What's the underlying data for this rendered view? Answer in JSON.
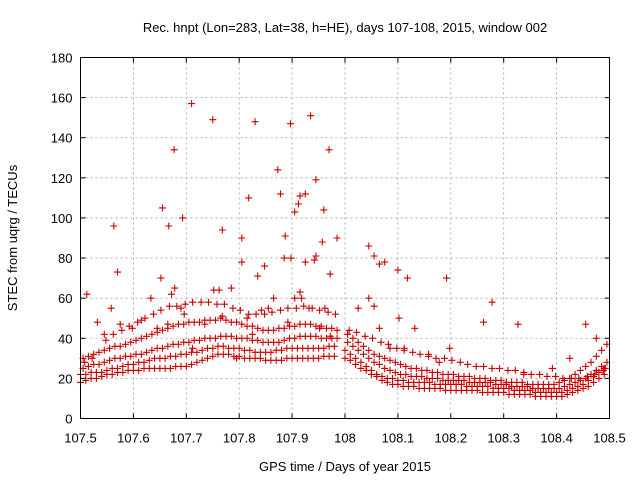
{
  "chart_data": {
    "type": "scatter",
    "title": "Rec. hnpt (Lon=283, Lat=38, h=HE), days 107-108, 2015, window 002",
    "xlabel": "GPS time / Days of year 2015",
    "ylabel": "STEC from uqrg / TECUs",
    "xlim": [
      107.5,
      108.5
    ],
    "ylim": [
      0,
      180
    ],
    "grid": true,
    "marker": "+",
    "marker_color": "#cc0000",
    "xticks": [
      {
        "value": 107.5,
        "label": "107.5"
      },
      {
        "value": 107.6,
        "label": "107.6"
      },
      {
        "value": 107.7,
        "label": "107.7"
      },
      {
        "value": 107.8,
        "label": "107.8"
      },
      {
        "value": 107.9,
        "label": "107.9"
      },
      {
        "value": 108.0,
        "label": "108"
      },
      {
        "value": 108.1,
        "label": "108.1"
      },
      {
        "value": 108.2,
        "label": "108.2"
      },
      {
        "value": 108.3,
        "label": "108.3"
      },
      {
        "value": 108.4,
        "label": "108.4"
      },
      {
        "value": 108.5,
        "label": "108.5"
      }
    ],
    "yticks": [
      {
        "value": 0,
        "label": "0"
      },
      {
        "value": 20,
        "label": "20"
      },
      {
        "value": 40,
        "label": "40"
      },
      {
        "value": 60,
        "label": "60"
      },
      {
        "value": 80,
        "label": "80"
      },
      {
        "value": 100,
        "label": "100"
      },
      {
        "value": 120,
        "label": "120"
      },
      {
        "value": 140,
        "label": "140"
      },
      {
        "value": 160,
        "label": "160"
      },
      {
        "value": 180,
        "label": "180"
      }
    ],
    "x": [
      107.5,
      107.51,
      107.52,
      107.53,
      107.54,
      107.55,
      107.56,
      107.57,
      107.58,
      107.59,
      107.6,
      107.61,
      107.62,
      107.63,
      107.64,
      107.65,
      107.66,
      107.67,
      107.68,
      107.69,
      107.7,
      107.71,
      107.72,
      107.73,
      107.74,
      107.75,
      107.76,
      107.77,
      107.78,
      107.79,
      107.8,
      107.81,
      107.82,
      107.83,
      107.84,
      107.85,
      107.86,
      107.87,
      107.88,
      107.89,
      107.9,
      107.91,
      107.92,
      107.93,
      107.94,
      107.95,
      107.96,
      107.97,
      107.98,
      108.0,
      108.01,
      108.02,
      108.03,
      108.04,
      108.05,
      108.06,
      108.07,
      108.08,
      108.09,
      108.1,
      108.11,
      108.12,
      108.13,
      108.14,
      108.15,
      108.16,
      108.17,
      108.18,
      108.19,
      108.2,
      108.21,
      108.22,
      108.23,
      108.24,
      108.25,
      108.26,
      108.27,
      108.28,
      108.29,
      108.3,
      108.31,
      108.32,
      108.33,
      108.34,
      108.35,
      108.36,
      108.37,
      108.38,
      108.39,
      108.4,
      108.41,
      108.42,
      108.43,
      108.44,
      108.45,
      108.46,
      108.47,
      108.48,
      108.49,
      107.5,
      107.51,
      107.52,
      107.53,
      107.54,
      107.55,
      107.56,
      107.57,
      107.58,
      107.59,
      107.6,
      107.61,
      107.62,
      107.63,
      107.64,
      107.65,
      107.66,
      107.67,
      107.68,
      107.69,
      107.7,
      107.71,
      107.72,
      107.73,
      107.74,
      107.75,
      107.76,
      107.77,
      107.78,
      107.79,
      107.8,
      107.81,
      107.82,
      107.83,
      107.84,
      107.85,
      107.86,
      107.87,
      107.88,
      107.89,
      107.9,
      107.91,
      107.92,
      107.93,
      107.94,
      107.95,
      107.96,
      107.97,
      107.98,
      108.0,
      108.01,
      108.02,
      108.03,
      108.04,
      108.05,
      108.06,
      108.07,
      108.08,
      108.09,
      108.1,
      108.11,
      108.12,
      108.13,
      108.14,
      108.15,
      108.16,
      108.17,
      108.18,
      108.19,
      108.2,
      108.21,
      108.22,
      108.23,
      108.24,
      108.25,
      108.26,
      108.27,
      108.28,
      108.29,
      108.3,
      108.31,
      108.32,
      108.33,
      108.34,
      108.35,
      108.36,
      108.37,
      108.38,
      108.39,
      108.4,
      108.41,
      108.42,
      108.43,
      108.44,
      108.45,
      108.46,
      108.47,
      108.48,
      108.49,
      107.505,
      107.515,
      107.525,
      107.535,
      107.545,
      107.555,
      107.565,
      107.575,
      107.585,
      107.595,
      107.605,
      107.615,
      107.625,
      107.635,
      107.645,
      107.655,
      107.665,
      107.675,
      107.685,
      107.695,
      107.705,
      107.715,
      107.725,
      107.735,
      107.745,
      107.755,
      107.765,
      107.775,
      107.785,
      107.795,
      107.805,
      107.815,
      107.825,
      107.835,
      107.845,
      107.855,
      107.865,
      107.875,
      107.885,
      107.895,
      107.905,
      107.915,
      107.925,
      107.935,
      107.945,
      107.955,
      107.965,
      107.975,
      107.985,
      108.005,
      108.015,
      108.025,
      108.035,
      108.045,
      108.055,
      108.065,
      108.075,
      108.085,
      108.095,
      108.105,
      108.115,
      108.125,
      108.135,
      108.145,
      108.155,
      108.165,
      108.175,
      108.185,
      108.195,
      108.205,
      108.215,
      108.225,
      108.235,
      108.245,
      108.255,
      108.265,
      108.275,
      108.285,
      108.295,
      108.305,
      108.315,
      108.325,
      108.335,
      108.345,
      108.355,
      108.365,
      108.375,
      108.385,
      108.395,
      108.405,
      108.415,
      108.425,
      108.435,
      108.445,
      108.455,
      108.465,
      108.475,
      108.485,
      108.495,
      107.505,
      107.515,
      107.525,
      107.535,
      107.545,
      107.555,
      107.565,
      107.575,
      107.585,
      107.595,
      107.605,
      107.615,
      107.625,
      107.635,
      107.645,
      107.655,
      107.665,
      107.675,
      107.685,
      107.695,
      107.705,
      107.715,
      107.725,
      107.735,
      107.745,
      107.755,
      107.765,
      107.775,
      107.785,
      107.795,
      107.805,
      107.815,
      107.825,
      107.835,
      107.845,
      107.855,
      107.865,
      107.875,
      107.885,
      107.895,
      107.905,
      107.915,
      107.925,
      107.935,
      107.945,
      107.955,
      107.965,
      107.975,
      107.985,
      108.005,
      108.015,
      108.025,
      108.035,
      108.045,
      108.055,
      108.065,
      108.075,
      108.085,
      108.095,
      108.105,
      108.115,
      108.125,
      108.135,
      108.145,
      108.155,
      108.165,
      108.175,
      108.185,
      108.195,
      108.205,
      108.215,
      108.225,
      108.235,
      108.245,
      108.255,
      108.265,
      108.275,
      108.285,
      108.295,
      108.305,
      108.315,
      108.325,
      108.335,
      108.345,
      108.355,
      108.365,
      108.375,
      108.385,
      108.395,
      108.405,
      108.415,
      108.425,
      108.435,
      108.445,
      108.455,
      108.465,
      108.475,
      108.485,
      108.495,
      107.508,
      107.522,
      107.548,
      107.562,
      107.578,
      107.592,
      107.608,
      107.622,
      107.638,
      107.652,
      107.668,
      107.682,
      107.698,
      107.712,
      107.728,
      107.742,
      107.758,
      107.772,
      107.788,
      107.802,
      107.818,
      107.832,
      107.848,
      107.862,
      107.878,
      107.892,
      107.908,
      107.922,
      107.938,
      107.952,
      107.968,
      107.982,
      108.008,
      108.022,
      108.038,
      108.052,
      108.068,
      108.082,
      108.098,
      108.112,
      108.128,
      108.142,
      108.158,
      108.172,
      108.188,
      108.202,
      108.218,
      108.232,
      108.248,
      108.262,
      108.278,
      108.292,
      108.308,
      108.322,
      108.338,
      108.352,
      108.368,
      108.382,
      108.398,
      108.412,
      108.428,
      108.442,
      108.458,
      108.472,
      108.488,
      107.512,
      107.532,
      107.545,
      107.558,
      107.575,
      107.598,
      107.615,
      107.633,
      107.645,
      107.652,
      107.665,
      107.672,
      107.678,
      107.69,
      107.696,
      107.712,
      107.735,
      107.752,
      107.762,
      107.768,
      107.785,
      107.795,
      107.805,
      107.815,
      107.825,
      107.835,
      107.842,
      107.855,
      107.865,
      107.878,
      107.885,
      107.892,
      107.898,
      107.905,
      107.912,
      107.918,
      107.925,
      107.932,
      107.942,
      107.952,
      107.962,
      107.972,
      108.025,
      108.045,
      108.055,
      108.065,
      108.085,
      108.102,
      108.112,
      108.132,
      108.158,
      108.178,
      108.198,
      108.262,
      108.338,
      108.392,
      108.425,
      108.455,
      108.475,
      108.492,
      107.57,
      107.563,
      107.655,
      107.667,
      107.677,
      107.693,
      107.71,
      107.75,
      107.768,
      107.805,
      107.818,
      107.83,
      107.848,
      107.873,
      107.887,
      107.897,
      107.905,
      107.935,
      107.945,
      107.96,
      107.97,
      107.985,
      107.915,
      107.925,
      107.945,
      108.075,
      108.1,
      108.055,
      107.915,
      107.957,
      107.972,
      108.045,
      108.065,
      108.118,
      108.192,
      108.278,
      108.327
    ],
    "y": [
      18,
      19,
      20,
      20,
      21,
      22,
      22,
      23,
      23,
      24,
      24,
      24,
      25,
      25,
      25,
      25,
      25,
      25,
      26,
      26,
      26,
      27,
      28,
      29,
      30,
      31,
      32,
      32,
      32,
      31,
      31,
      30,
      30,
      30,
      30,
      29,
      29,
      29,
      29,
      30,
      30,
      30,
      30,
      30,
      30,
      30,
      31,
      31,
      31,
      30,
      29,
      27,
      25,
      24,
      22,
      21,
      19,
      18,
      17,
      17,
      16,
      16,
      16,
      15,
      15,
      15,
      15,
      15,
      14,
      14,
      14,
      14,
      14,
      14,
      14,
      13,
      13,
      13,
      13,
      13,
      12,
      12,
      12,
      12,
      12,
      11,
      11,
      11,
      11,
      11,
      11,
      12,
      13,
      14,
      15,
      16,
      18,
      20,
      22,
      22,
      22,
      23,
      23,
      23,
      24,
      25,
      25,
      26,
      27,
      27,
      28,
      28,
      29,
      30,
      30,
      30,
      31,
      31,
      32,
      32,
      33,
      33,
      34,
      35,
      35,
      36,
      36,
      35,
      35,
      35,
      34,
      34,
      33,
      33,
      33,
      33,
      34,
      34,
      35,
      35,
      35,
      35,
      35,
      35,
      35,
      35,
      36,
      36,
      34,
      32,
      30,
      28,
      26,
      24,
      22,
      21,
      20,
      20,
      19,
      19,
      18,
      18,
      18,
      18,
      18,
      17,
      17,
      17,
      17,
      17,
      17,
      16,
      16,
      16,
      16,
      16,
      15,
      15,
      15,
      15,
      14,
      14,
      14,
      14,
      13,
      13,
      13,
      13,
      13,
      13,
      14,
      15,
      16,
      17,
      19,
      21,
      23,
      25,
      25,
      26,
      27,
      27,
      28,
      29,
      30,
      30,
      31,
      31,
      32,
      32,
      33,
      34,
      35,
      35,
      36,
      37,
      37,
      38,
      38,
      39,
      39,
      40,
      40,
      40,
      41,
      41,
      41,
      40,
      40,
      40,
      39,
      39,
      38,
      38,
      38,
      38,
      39,
      40,
      40,
      41,
      41,
      41,
      41,
      40,
      40,
      40,
      40,
      38,
      36,
      34,
      32,
      30,
      28,
      27,
      25,
      24,
      23,
      22,
      22,
      21,
      21,
      21,
      20,
      20,
      20,
      19,
      19,
      19,
      19,
      19,
      18,
      18,
      18,
      18,
      18,
      17,
      17,
      17,
      16,
      16,
      16,
      16,
      15,
      15,
      15,
      15,
      15,
      15,
      16,
      17,
      18,
      19,
      20,
      22,
      24,
      26,
      28,
      30,
      31,
      32,
      33,
      34,
      35,
      36,
      36,
      37,
      38,
      39,
      40,
      41,
      42,
      43,
      44,
      45,
      46,
      47,
      47,
      48,
      48,
      48,
      49,
      49,
      49,
      50,
      49,
      48,
      48,
      47,
      46,
      46,
      45,
      44,
      44,
      44,
      45,
      45,
      46,
      46,
      47,
      47,
      47,
      46,
      46,
      45,
      45,
      44,
      42,
      40,
      38,
      36,
      34,
      32,
      31,
      30,
      29,
      28,
      27,
      26,
      25,
      25,
      24,
      24,
      23,
      23,
      22,
      22,
      22,
      21,
      21,
      21,
      20,
      20,
      20,
      19,
      19,
      19,
      18,
      18,
      18,
      18,
      17,
      17,
      17,
      17,
      17,
      17,
      18,
      19,
      20,
      22,
      24,
      26,
      28,
      31,
      34,
      37,
      28,
      30,
      39,
      42,
      44,
      46,
      48,
      50,
      52,
      54,
      56,
      56,
      57,
      58,
      58,
      58,
      57,
      57,
      55,
      54,
      52,
      52,
      52,
      53,
      54,
      55,
      55,
      56,
      55,
      54,
      53,
      52,
      44,
      43,
      41,
      40,
      38,
      37,
      35,
      34,
      33,
      32,
      31,
      30,
      30,
      29,
      28,
      27,
      26,
      26,
      25,
      25,
      24,
      24,
      23,
      22,
      22,
      21,
      21,
      20,
      20,
      20,
      21,
      22,
      24,
      62,
      48,
      42,
      55,
      47,
      45,
      49,
      60,
      45,
      70,
      47,
      62,
      65,
      55,
      52,
      35,
      47,
      64,
      64,
      51,
      65,
      30,
      78,
      50,
      42,
      71,
      54,
      55,
      60,
      112,
      80,
      48,
      80,
      60,
      107,
      60,
      78,
      55,
      79,
      45,
      55,
      41,
      55,
      60,
      56,
      45,
      35,
      50,
      35,
      45,
      32,
      28,
      35,
      48,
      22,
      25,
      30,
      47,
      40,
      25,
      73,
      96,
      105,
      96,
      134,
      100,
      157,
      149,
      94,
      90,
      110,
      148,
      76,
      124,
      91,
      147,
      103,
      151,
      119,
      104,
      134,
      90,
      111,
      112,
      81,
      78,
      74,
      81,
      63,
      88,
      72,
      86,
      77,
      70,
      70,
      58,
      47
    ]
  }
}
